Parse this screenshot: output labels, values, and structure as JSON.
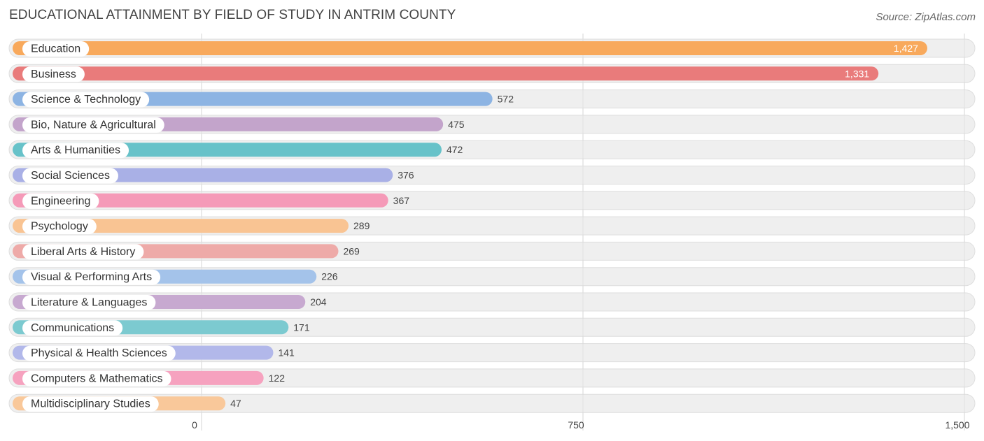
{
  "chart_data": {
    "type": "bar",
    "orientation": "horizontal",
    "title": "EDUCATIONAL ATTAINMENT BY FIELD OF STUDY IN ANTRIM COUNTY",
    "source": "Source: ZipAtlas.com",
    "categories": [
      "Education",
      "Business",
      "Science & Technology",
      "Bio, Nature & Agricultural",
      "Arts & Humanities",
      "Social Sciences",
      "Engineering",
      "Psychology",
      "Liberal Arts & History",
      "Visual & Performing Arts",
      "Literature & Languages",
      "Communications",
      "Physical & Health Sciences",
      "Computers & Mathematics",
      "Multidisciplinary Studies"
    ],
    "values": [
      1427,
      1331,
      572,
      475,
      472,
      376,
      367,
      289,
      269,
      226,
      204,
      171,
      141,
      122,
      47
    ],
    "value_labels": [
      "1,427",
      "1,331",
      "572",
      "475",
      "472",
      "376",
      "367",
      "289",
      "269",
      "226",
      "204",
      "171",
      "141",
      "122",
      "47"
    ],
    "colors": [
      "#f8a95c",
      "#e97b7b",
      "#8db4e3",
      "#c3a4cb",
      "#67c2c9",
      "#a9b0e6",
      "#f59ab8",
      "#f9c493",
      "#eeaaa8",
      "#a4c3ea",
      "#c7a9d0",
      "#7ccad0",
      "#b2b8ea",
      "#f6a2bf",
      "#f9c89a"
    ],
    "x_ticks": [
      0,
      750,
      1500
    ],
    "x_tick_labels": [
      "0",
      "750",
      "1,500"
    ],
    "xlim": [
      0,
      1500
    ],
    "grid": true,
    "xlabel": "",
    "ylabel": ""
  }
}
